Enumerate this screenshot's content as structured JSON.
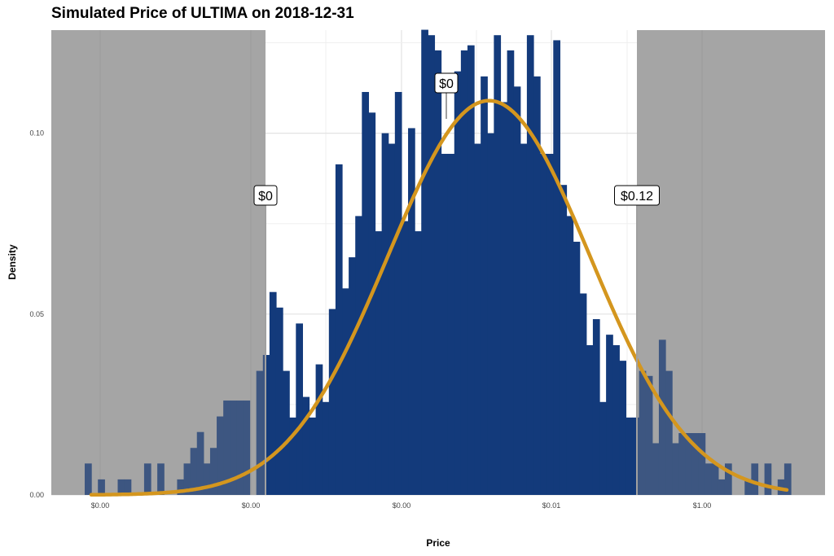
{
  "chart_data": {
    "type": "histogram",
    "title": "Simulated Price of ULTIMA on 2018-12-31",
    "xlabel": "Price",
    "ylabel": "Density",
    "x_axis_scale": "log",
    "x_tick_labels": [
      "$0.00",
      "$0.00",
      "$0.00",
      "$0.01",
      "$1.00"
    ],
    "y_tick_labels": [
      "0.00",
      "0.05",
      "0.10"
    ],
    "ylim": [
      0,
      0.1285
    ],
    "bar_color": "#133a7b",
    "curve_color": "#d4961e",
    "shade_color": "#b3b3b3",
    "grid": true,
    "densities": [
      0.0087,
      0.0,
      0.0043,
      0.0,
      0.0,
      0.0043,
      0.0043,
      0.0,
      0.0,
      0.0087,
      0.0,
      0.0087,
      0.0,
      0.0,
      0.0043,
      0.0087,
      0.013,
      0.0174,
      0.0087,
      0.013,
      0.0217,
      0.0261,
      0.0261,
      0.0261,
      0.0261,
      0.0,
      0.0343,
      0.0387,
      0.0561,
      0.0518,
      0.0343,
      0.0214,
      0.0474,
      0.0271,
      0.0214,
      0.0361,
      0.0257,
      0.0514,
      0.0914,
      0.0571,
      0.0657,
      0.0771,
      0.1114,
      0.1057,
      0.0729,
      0.1,
      0.0971,
      0.1114,
      0.0757,
      0.1014,
      0.0729,
      0.1286,
      0.1271,
      0.1229,
      0.0943,
      0.0943,
      0.1171,
      0.1229,
      0.1243,
      0.0971,
      0.1157,
      0.1,
      0.1271,
      0.1086,
      0.1229,
      0.1129,
      0.0971,
      0.1271,
      0.1157,
      0.0943,
      0.0943,
      0.1257,
      0.0857,
      0.0771,
      0.07,
      0.0557,
      0.0414,
      0.0486,
      0.0257,
      0.0443,
      0.0414,
      0.0371,
      0.0214,
      0.0214,
      0.0343,
      0.0329,
      0.0143,
      0.0429,
      0.0343,
      0.0143,
      0.0171,
      0.0171,
      0.0171,
      0.0171,
      0.0087,
      0.0087,
      0.0043,
      0.0087,
      0.0,
      0.0,
      0.0043,
      0.0087,
      0.0,
      0.0087,
      0.0,
      0.0043,
      0.0087
    ],
    "fit_curve": {
      "peak": 0.109,
      "mu_position": 0.5725,
      "sd_fraction": 0.1429
    },
    "lower_bound_label": "$0",
    "median_label": "$0",
    "upper_bound_label": "$0.12"
  }
}
